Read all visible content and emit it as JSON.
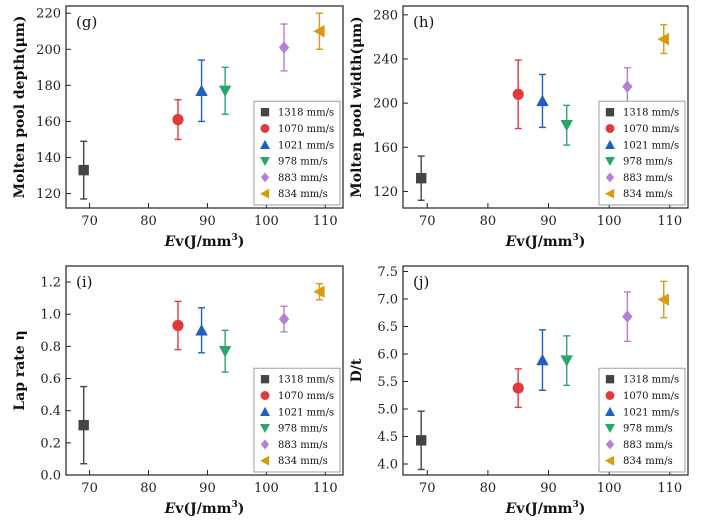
{
  "chart_data": [
    {
      "type": "scatter",
      "panel": "(g)",
      "xlabel_main": "E",
      "xlabel_rest": "v(J/mm",
      "xlabel_sup": "3",
      "xlabel_end": ")",
      "ylabel": "Molten pool depth(μm)",
      "xlim": [
        66,
        113
      ],
      "ylim": [
        112,
        224
      ],
      "xticks": [
        70,
        80,
        90,
        100,
        110
      ],
      "yticks": [
        120,
        140,
        160,
        180,
        200,
        220
      ],
      "yticklabels": [
        "120",
        "140",
        "160",
        "180",
        "200",
        "220"
      ],
      "legend_position": "bottom-right",
      "series": [
        {
          "name": "1318 mm/s",
          "marker": "square",
          "color": "#444444",
          "x": 69,
          "y": 133,
          "err": 16
        },
        {
          "name": "1070 mm/s",
          "marker": "circle",
          "color": "#e0393e",
          "x": 85,
          "y": 161,
          "err": 11
        },
        {
          "name": "1021 mm/s",
          "marker": "triangle-up",
          "color": "#1f5fbf",
          "x": 89,
          "y": 177,
          "err": 17
        },
        {
          "name": "978 mm/s",
          "marker": "triangle-down",
          "color": "#2aa66a",
          "x": 93,
          "y": 177,
          "err": 13
        },
        {
          "name": "883 mm/s",
          "marker": "diamond",
          "color": "#b57fd6",
          "x": 103,
          "y": 201,
          "err": 13
        },
        {
          "name": "834 mm/s",
          "marker": "triangle-left",
          "color": "#d99a10",
          "x": 109,
          "y": 210,
          "err": 10
        }
      ]
    },
    {
      "type": "scatter",
      "panel": "(h)",
      "xlabel_main": "E",
      "xlabel_rest": "v(J/mm",
      "xlabel_sup": "3",
      "xlabel_end": ")",
      "ylabel": "Molten pool width(μm)",
      "xlim": [
        66,
        113
      ],
      "ylim": [
        105,
        288
      ],
      "xticks": [
        70,
        80,
        90,
        100,
        110
      ],
      "yticks": [
        120,
        160,
        200,
        240,
        280
      ],
      "yticklabels": [
        "120",
        "160",
        "200",
        "240",
        "280"
      ],
      "legend_position": "bottom-right",
      "series": [
        {
          "name": "1318 mm/s",
          "marker": "square",
          "color": "#444444",
          "x": 69,
          "y": 132,
          "err": 20
        },
        {
          "name": "1070 mm/s",
          "marker": "circle",
          "color": "#e0393e",
          "x": 85,
          "y": 208,
          "err": 31
        },
        {
          "name": "1021 mm/s",
          "marker": "triangle-up",
          "color": "#1f5fbf",
          "x": 89,
          "y": 202,
          "err": 24
        },
        {
          "name": "978 mm/s",
          "marker": "triangle-down",
          "color": "#2aa66a",
          "x": 93,
          "y": 180,
          "err": 18
        },
        {
          "name": "883 mm/s",
          "marker": "diamond",
          "color": "#b57fd6",
          "x": 103,
          "y": 215,
          "err": 17
        },
        {
          "name": "834 mm/s",
          "marker": "triangle-left",
          "color": "#d99a10",
          "x": 109,
          "y": 258,
          "err": 13
        }
      ]
    },
    {
      "type": "scatter",
      "panel": "(i)",
      "xlabel_main": "E",
      "xlabel_rest": "v(J/mm",
      "xlabel_sup": "3",
      "xlabel_end": ")",
      "ylabel": "Lap rate η",
      "xlim": [
        66,
        113
      ],
      "ylim": [
        0,
        1.3
      ],
      "xticks": [
        70,
        80,
        90,
        100,
        110
      ],
      "yticks": [
        0.0,
        0.2,
        0.4,
        0.6,
        0.8,
        1.0,
        1.2
      ],
      "yticklabels": [
        "0.0",
        "0.2",
        "0.4",
        "0.6",
        "0.8",
        "1.0",
        "1.2"
      ],
      "legend_position": "bottom-right",
      "series": [
        {
          "name": "1318 mm/s",
          "marker": "square",
          "color": "#444444",
          "x": 69,
          "y": 0.31,
          "err": 0.24
        },
        {
          "name": "1070 mm/s",
          "marker": "circle",
          "color": "#e0393e",
          "x": 85,
          "y": 0.93,
          "err": 0.15
        },
        {
          "name": "1021 mm/s",
          "marker": "triangle-up",
          "color": "#1f5fbf",
          "x": 89,
          "y": 0.9,
          "err": 0.14
        },
        {
          "name": "978 mm/s",
          "marker": "triangle-down",
          "color": "#2aa66a",
          "x": 93,
          "y": 0.77,
          "err": 0.13
        },
        {
          "name": "883 mm/s",
          "marker": "diamond",
          "color": "#b57fd6",
          "x": 103,
          "y": 0.97,
          "err": 0.08
        },
        {
          "name": "834 mm/s",
          "marker": "triangle-left",
          "color": "#d99a10",
          "x": 109,
          "y": 1.14,
          "err": 0.05
        }
      ]
    },
    {
      "type": "scatter",
      "panel": "(j)",
      "xlabel_main": "E",
      "xlabel_rest": "v(J/mm",
      "xlabel_sup": "3",
      "xlabel_end": ")",
      "ylabel": "D/t",
      "xlim": [
        66,
        113
      ],
      "ylim": [
        3.8,
        7.6
      ],
      "xticks": [
        70,
        80,
        90,
        100,
        110
      ],
      "yticks": [
        4.0,
        4.5,
        5.0,
        5.5,
        6.0,
        6.5,
        7.0,
        7.5
      ],
      "yticklabels": [
        "4.0",
        "4.5",
        "5.0",
        "5.5",
        "6.0",
        "6.5",
        "7.0",
        "7.5"
      ],
      "legend_position": "bottom-right",
      "series": [
        {
          "name": "1318 mm/s",
          "marker": "square",
          "color": "#444444",
          "x": 69,
          "y": 4.43,
          "err": 0.53
        },
        {
          "name": "1070 mm/s",
          "marker": "circle",
          "color": "#e0393e",
          "x": 85,
          "y": 5.38,
          "err": 0.35
        },
        {
          "name": "1021 mm/s",
          "marker": "triangle-up",
          "color": "#1f5fbf",
          "x": 89,
          "y": 5.89,
          "err": 0.55
        },
        {
          "name": "978 mm/s",
          "marker": "triangle-down",
          "color": "#2aa66a",
          "x": 93,
          "y": 5.88,
          "err": 0.45
        },
        {
          "name": "883 mm/s",
          "marker": "diamond",
          "color": "#b57fd6",
          "x": 103,
          "y": 6.68,
          "err": 0.45
        },
        {
          "name": "834 mm/s",
          "marker": "triangle-left",
          "color": "#d99a10",
          "x": 109,
          "y": 6.99,
          "err": 0.33
        }
      ]
    }
  ]
}
